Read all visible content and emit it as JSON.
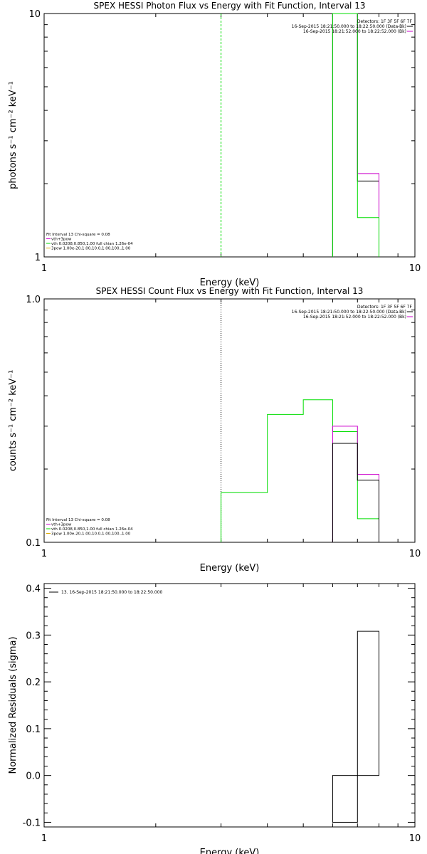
{
  "colors": {
    "data": "#000000",
    "fit_total": "#cc00cc",
    "fit_vth": "#00dd00",
    "fit_3pow": "#ddaa00",
    "frame": "#000000"
  },
  "chart_data": [
    {
      "type": "line",
      "subtype": "step",
      "title": "SPEX HESSI Photon Flux vs Energy with Fit Function, Interval 13",
      "xlabel": "Energy (keV)",
      "ylabel": "photons s⁻¹ cm⁻² keV⁻¹",
      "xscale": "log",
      "yscale": "log",
      "xlim": [
        1,
        10
      ],
      "ylim": [
        1,
        10
      ],
      "x_ticks": [
        "1",
        "10"
      ],
      "y_ticks": [
        "1",
        "10"
      ],
      "grid": false,
      "legend_position": "top-right",
      "legend": {
        "lines": [
          {
            "text": "Detectors: 1F 3F 5F 6F 7F",
            "marker": false
          },
          {
            "text": "16-Sep-2015 18:21:50.000 to 18:22:50.000 (Data-Bk)",
            "marker": true,
            "color": "#000000"
          },
          {
            "text": "16-Sep-2015 18:21:52.000 to 18:22:52.000 (Bk)",
            "marker": true,
            "color": "#cc00cc"
          }
        ]
      },
      "fit_info_position": "bottom-left",
      "fit_info": [
        {
          "text": "Fit Interval 13   Chi-square = 0.08",
          "marker": false
        },
        {
          "text": "vth+3pow",
          "marker": true,
          "color": "#cc00cc"
        },
        {
          "text": "vth 0.0208,0.850,1.00  full chian 1.26e-04",
          "marker": true,
          "color": "#00dd00"
        },
        {
          "text": "3pow 1.00e-20,1.00,10.0,1.00,100.,1.00",
          "marker": true,
          "color": "#ddaa00"
        }
      ],
      "vlines": [
        {
          "x": 3.0,
          "color": "#00dd00",
          "style": "dashed"
        }
      ],
      "series": [
        {
          "name": "Data-Bk",
          "color": "#000000",
          "edges": [
            6,
            7,
            8
          ],
          "values": [
            10.0,
            2.05
          ]
        },
        {
          "name": "vth+3pow",
          "color": "#cc00cc",
          "edges": [
            6,
            7,
            8
          ],
          "values": [
            10.0,
            2.2
          ]
        },
        {
          "name": "vth",
          "color": "#00dd00",
          "edges": [
            6,
            7,
            8
          ],
          "values": [
            10.0,
            1.45
          ]
        }
      ]
    },
    {
      "type": "line",
      "subtype": "step",
      "title": "SPEX HESSI Count Flux vs Energy with Fit Function, Interval 13",
      "xlabel": "Energy (keV)",
      "ylabel": "counts s⁻¹ cm⁻² keV⁻¹",
      "xscale": "log",
      "yscale": "log",
      "xlim": [
        1,
        10
      ],
      "ylim": [
        0.1,
        1.0
      ],
      "x_ticks": [
        "1",
        "10"
      ],
      "y_ticks": [
        "0.1",
        "1.0"
      ],
      "grid": false,
      "legend_position": "top-right",
      "legend": {
        "lines": [
          {
            "text": "Detectors: 1F 3F 5F 6F 7F",
            "marker": false
          },
          {
            "text": "16-Sep-2015 18:21:50.000 to 18:22:50.000 (Data-Bk)",
            "marker": true,
            "color": "#000000"
          },
          {
            "text": "16-Sep-2015 18:21:52.000 to 18:22:52.000 (Bk)",
            "marker": true,
            "color": "#cc00cc"
          }
        ]
      },
      "fit_info_position": "bottom-left",
      "fit_info": [
        {
          "text": "Fit Interval 13   Chi-square = 0.08",
          "marker": false
        },
        {
          "text": "vth+3pow",
          "marker": true,
          "color": "#cc00cc"
        },
        {
          "text": "vth 0.0208,0.850,1.00  full chian 1.26e-04",
          "marker": true,
          "color": "#00dd00"
        },
        {
          "text": "3pow 1.00e-20,1.00,10.0,1.00,100.,1.00",
          "marker": true,
          "color": "#ddaa00"
        }
      ],
      "vlines": [
        {
          "x": 3.0,
          "color": "#000000",
          "style": "dotted"
        }
      ],
      "series": [
        {
          "name": "vth",
          "color": "#00dd00",
          "edges": [
            3,
            4,
            5,
            6,
            7,
            8
          ],
          "values": [
            0.16,
            0.335,
            0.385,
            0.285,
            0.125
          ]
        },
        {
          "name": "vth+3pow",
          "color": "#cc00cc",
          "edges": [
            6,
            7,
            8
          ],
          "values": [
            0.3,
            0.19
          ]
        },
        {
          "name": "Data-Bk",
          "color": "#000000",
          "edges": [
            6,
            7,
            8
          ],
          "values": [
            0.255,
            0.18
          ]
        }
      ]
    },
    {
      "type": "line",
      "subtype": "step",
      "title": "",
      "xlabel": "Energy (keV)",
      "ylabel": "Normalized Residuals (sigma)",
      "xscale": "log",
      "yscale": "linear",
      "xlim": [
        1,
        10
      ],
      "ylim": [
        -0.11,
        0.41
      ],
      "x_ticks": [
        "1",
        "10"
      ],
      "y_ticks": [
        "-0.1",
        "0.0",
        "0.1",
        "0.2",
        "0.3",
        "0.4"
      ],
      "grid": false,
      "legend_position": "top-left",
      "legend": {
        "lines": [
          {
            "text": "13. 16-Sep-2015 18:21:50.000 to 18:22:50.000",
            "marker": true,
            "color": "#000000"
          }
        ]
      },
      "series": [
        {
          "name": "13. 16-Sep-2015 18:21:50.000 to 18:22:50.000",
          "color": "#000000",
          "edges": [
            6,
            7,
            8
          ],
          "values": [
            -0.1,
            0.308
          ],
          "closed_bars": true
        }
      ]
    }
  ]
}
